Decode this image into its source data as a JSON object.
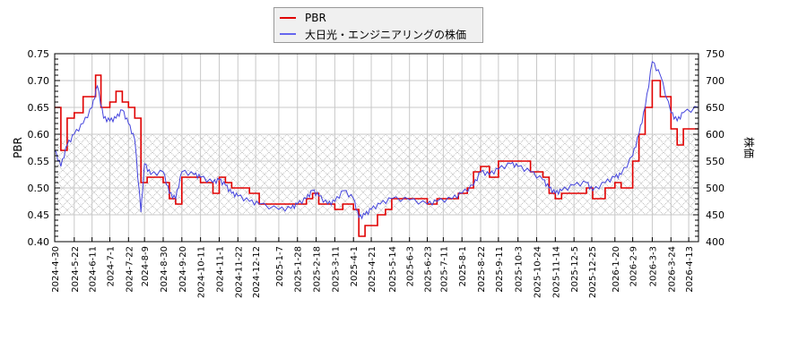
{
  "chart_data": {
    "type": "line",
    "title": "",
    "legend": {
      "position": "top-center",
      "entries": [
        {
          "label": "PBR",
          "color": "#e00000"
        },
        {
          "label": "大日光・エンジニアリングの株価",
          "color": "#4444dd"
        }
      ]
    },
    "x_ticks": [
      "2024-4-30",
      "2024-5-22",
      "2024-6-11",
      "2024-7-1",
      "2024-7-22",
      "2024-8-9",
      "2024-8-30",
      "2024-9-20",
      "2024-10-11",
      "2024-11-1",
      "2024-11-22",
      "2024-12-12",
      "2025-1-7",
      "2025-1-28",
      "2025-2-18",
      "2025-3-11",
      "2025-4-1",
      "2025-4-21",
      "2025-5-14",
      "2025-6-3",
      "2025-6-23",
      "2025-7-11",
      "2025-8-1",
      "2025-8-22",
      "2025-9-11",
      "2025-10-3",
      "2025-10-24",
      "2025-11-14",
      "2025-12-5",
      "2025-12-25",
      "2026-1-20",
      "2026-2-9",
      "2026-3-3",
      "2026-3-24",
      "2026-4-13"
    ],
    "y_left": {
      "label": "PBR",
      "ylim": [
        0.4,
        0.75
      ],
      "ticks": [
        "0.40",
        "0.45",
        "0.50",
        "0.55",
        "0.60",
        "0.65",
        "0.70",
        "0.75"
      ]
    },
    "y_right": {
      "label": "株価",
      "ylim": [
        400,
        750
      ],
      "ticks": [
        "400",
        "450",
        "500",
        "550",
        "600",
        "650",
        "700",
        "750"
      ]
    },
    "shaded_band": {
      "from": 0.45,
      "to": 0.6,
      "pattern": "crosshatch"
    },
    "grid": true,
    "series": [
      {
        "name": "PBR",
        "axis": "left",
        "color": "#e00000",
        "step": true,
        "points": [
          [
            "2024-4-30",
            0.65
          ],
          [
            "2024-5-7",
            0.57
          ],
          [
            "2024-5-14",
            0.63
          ],
          [
            "2024-5-22",
            0.64
          ],
          [
            "2024-6-1",
            0.67
          ],
          [
            "2024-6-15",
            0.71
          ],
          [
            "2024-6-21",
            0.65
          ],
          [
            "2024-7-1",
            0.66
          ],
          [
            "2024-7-8",
            0.68
          ],
          [
            "2024-7-15",
            0.66
          ],
          [
            "2024-7-22",
            0.65
          ],
          [
            "2024-7-29",
            0.63
          ],
          [
            "2024-8-5",
            0.51
          ],
          [
            "2024-8-12",
            0.52
          ],
          [
            "2024-8-30",
            0.51
          ],
          [
            "2024-9-6",
            0.48
          ],
          [
            "2024-9-13",
            0.47
          ],
          [
            "2024-9-20",
            0.52
          ],
          [
            "2024-10-4",
            0.52
          ],
          [
            "2024-10-11",
            0.51
          ],
          [
            "2024-10-25",
            0.49
          ],
          [
            "2024-11-1",
            0.52
          ],
          [
            "2024-11-8",
            0.51
          ],
          [
            "2024-11-15",
            0.5
          ],
          [
            "2024-12-5",
            0.49
          ],
          [
            "2024-12-16",
            0.47
          ],
          [
            "2025-1-7",
            0.47
          ],
          [
            "2025-2-7",
            0.48
          ],
          [
            "2025-2-14",
            0.49
          ],
          [
            "2025-2-21",
            0.47
          ],
          [
            "2025-3-11",
            0.46
          ],
          [
            "2025-3-20",
            0.47
          ],
          [
            "2025-4-1",
            0.46
          ],
          [
            "2025-4-7",
            0.41
          ],
          [
            "2025-4-14",
            0.43
          ],
          [
            "2025-4-28",
            0.45
          ],
          [
            "2025-5-7",
            0.46
          ],
          [
            "2025-5-14",
            0.48
          ],
          [
            "2025-6-3",
            0.48
          ],
          [
            "2025-6-23",
            0.47
          ],
          [
            "2025-7-4",
            0.48
          ],
          [
            "2025-7-21",
            0.48
          ],
          [
            "2025-7-28",
            0.49
          ],
          [
            "2025-8-7",
            0.5
          ],
          [
            "2025-8-14",
            0.53
          ],
          [
            "2025-8-22",
            0.54
          ],
          [
            "2025-9-1",
            0.52
          ],
          [
            "2025-9-11",
            0.55
          ],
          [
            "2025-9-25",
            0.55
          ],
          [
            "2025-10-3",
            0.55
          ],
          [
            "2025-10-17",
            0.53
          ],
          [
            "2025-10-31",
            0.52
          ],
          [
            "2025-11-7",
            0.49
          ],
          [
            "2025-11-14",
            0.48
          ],
          [
            "2025-11-21",
            0.49
          ],
          [
            "2025-12-5",
            0.49
          ],
          [
            "2025-12-19",
            0.5
          ],
          [
            "2025-12-26",
            0.48
          ],
          [
            "2026-1-9",
            0.5
          ],
          [
            "2026-1-20",
            0.51
          ],
          [
            "2026-1-27",
            0.5
          ],
          [
            "2026-2-9",
            0.55
          ],
          [
            "2026-2-16",
            0.6
          ],
          [
            "2026-2-23",
            0.65
          ],
          [
            "2026-3-3",
            0.7
          ],
          [
            "2026-3-12",
            0.67
          ],
          [
            "2026-3-24",
            0.61
          ],
          [
            "2026-3-31",
            0.58
          ],
          [
            "2026-4-7",
            0.61
          ],
          [
            "2026-4-24",
            0.61
          ]
        ]
      },
      {
        "name": "大日光・エンジニアリングの株価",
        "axis": "right",
        "color": "#4444dd",
        "step": false,
        "points": [
          [
            "2024-4-30",
            570
          ],
          [
            "2024-5-7",
            540
          ],
          [
            "2024-5-14",
            580
          ],
          [
            "2024-5-22",
            600
          ],
          [
            "2024-6-1",
            620
          ],
          [
            "2024-6-11",
            650
          ],
          [
            "2024-6-17",
            690
          ],
          [
            "2024-6-24",
            630
          ],
          [
            "2024-7-1",
            625
          ],
          [
            "2024-7-8",
            630
          ],
          [
            "2024-7-15",
            645
          ],
          [
            "2024-7-22",
            620
          ],
          [
            "2024-7-29",
            590
          ],
          [
            "2024-8-5",
            455
          ],
          [
            "2024-8-9",
            545
          ],
          [
            "2024-8-16",
            525
          ],
          [
            "2024-8-30",
            530
          ],
          [
            "2024-9-6",
            490
          ],
          [
            "2024-9-13",
            480
          ],
          [
            "2024-9-20",
            530
          ],
          [
            "2024-10-4",
            525
          ],
          [
            "2024-10-11",
            520
          ],
          [
            "2024-10-25",
            510
          ],
          [
            "2024-11-1",
            515
          ],
          [
            "2024-11-8",
            505
          ],
          [
            "2024-11-15",
            490
          ],
          [
            "2024-11-22",
            485
          ],
          [
            "2024-12-5",
            475
          ],
          [
            "2024-12-16",
            470
          ],
          [
            "2025-1-7",
            460
          ],
          [
            "2025-1-21",
            462
          ],
          [
            "2025-1-28",
            470
          ],
          [
            "2025-2-7",
            480
          ],
          [
            "2025-2-14",
            495
          ],
          [
            "2025-2-21",
            485
          ],
          [
            "2025-3-3",
            470
          ],
          [
            "2025-3-11",
            475
          ],
          [
            "2025-3-21",
            495
          ],
          [
            "2025-4-1",
            480
          ],
          [
            "2025-4-7",
            445
          ],
          [
            "2025-4-14",
            450
          ],
          [
            "2025-4-21",
            460
          ],
          [
            "2025-5-1",
            470
          ],
          [
            "2025-5-14",
            480
          ],
          [
            "2025-6-3",
            478
          ],
          [
            "2025-6-23",
            470
          ],
          [
            "2025-7-4",
            475
          ],
          [
            "2025-7-21",
            480
          ],
          [
            "2025-8-1",
            490
          ],
          [
            "2025-8-14",
            505
          ],
          [
            "2025-8-22",
            530
          ],
          [
            "2025-9-1",
            525
          ],
          [
            "2025-9-11",
            535
          ],
          [
            "2025-9-25",
            545
          ],
          [
            "2025-10-3",
            540
          ],
          [
            "2025-10-17",
            530
          ],
          [
            "2025-10-31",
            515
          ],
          [
            "2025-11-7",
            500
          ],
          [
            "2025-11-14",
            490
          ],
          [
            "2025-11-21",
            495
          ],
          [
            "2025-12-5",
            505
          ],
          [
            "2025-12-19",
            510
          ],
          [
            "2025-12-26",
            495
          ],
          [
            "2026-1-9",
            510
          ],
          [
            "2026-1-20",
            520
          ],
          [
            "2026-1-27",
            525
          ],
          [
            "2026-2-9",
            560
          ],
          [
            "2026-2-16",
            600
          ],
          [
            "2026-2-23",
            650
          ],
          [
            "2026-3-3",
            735
          ],
          [
            "2026-3-12",
            710
          ],
          [
            "2026-3-24",
            640
          ],
          [
            "2026-3-31",
            625
          ],
          [
            "2026-4-7",
            640
          ],
          [
            "2026-4-24",
            650
          ]
        ]
      }
    ]
  }
}
